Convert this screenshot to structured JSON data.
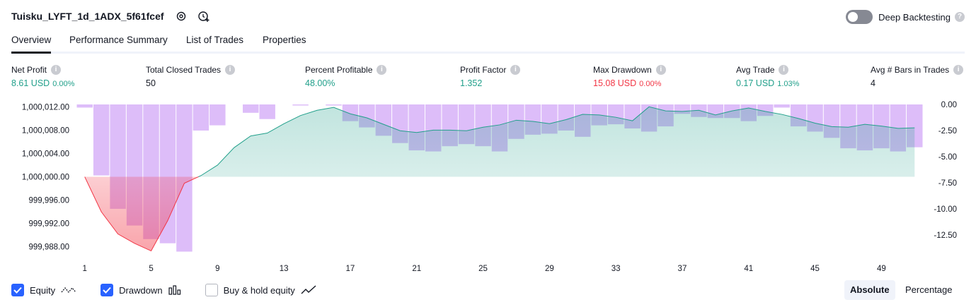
{
  "header": {
    "title": "Tuisku_LYFT_1d_1ADX_5f61fcef",
    "deep_backtesting_label": "Deep Backtesting"
  },
  "tabs": [
    "Overview",
    "Performance Summary",
    "List of Trades",
    "Properties"
  ],
  "stats": [
    {
      "label": "Net Profit",
      "value": "8.61 USD",
      "pct": "0.00%",
      "color": "green"
    },
    {
      "label": "Total Closed Trades",
      "value": "50",
      "pct": "",
      "color": "plain"
    },
    {
      "label": "Percent Profitable",
      "value": "48.00%",
      "pct": "",
      "color": "green"
    },
    {
      "label": "Profit Factor",
      "value": "1.352",
      "pct": "",
      "color": "green"
    },
    {
      "label": "Max Drawdown",
      "value": "15.08 USD",
      "pct": "0.00%",
      "color": "red"
    },
    {
      "label": "Avg Trade",
      "value": "0.17 USD",
      "pct": "1.03%",
      "color": "green"
    },
    {
      "label": "Avg # Bars in Trades",
      "value": "4",
      "pct": "",
      "color": "plain"
    }
  ],
  "legend": {
    "equity": "Equity",
    "drawdown": "Drawdown",
    "buy_hold": "Buy & hold equity"
  },
  "modes": {
    "absolute": "Absolute",
    "percentage": "Percentage"
  },
  "colors": {
    "equity_line_up": "#22a08b",
    "equity_line_down": "#f23645",
    "drawdown_bar": "#d1a7f7",
    "accent": "#2962ff"
  },
  "chart_data": {
    "type": "area",
    "x": [
      1,
      2,
      3,
      4,
      5,
      6,
      7,
      8,
      9,
      10,
      11,
      12,
      13,
      14,
      15,
      16,
      17,
      18,
      19,
      20,
      21,
      22,
      23,
      24,
      25,
      26,
      27,
      28,
      29,
      30,
      31,
      32,
      33,
      34,
      35,
      36,
      37,
      38,
      39,
      40,
      41,
      42,
      43,
      44,
      45,
      46,
      47,
      48,
      49,
      50,
      51
    ],
    "x_ticks": [
      "1",
      "5",
      "9",
      "13",
      "17",
      "21",
      "25",
      "29",
      "33",
      "37",
      "41",
      "45",
      "49"
    ],
    "left_axis": {
      "ticks": [
        "1,000,012.00",
        "1,000,008.00",
        "1,000,004.00",
        "1,000,000.00",
        "999,996.00",
        "999,992.00",
        "999,988.00"
      ],
      "ylim": [
        999987,
        1000012.4
      ]
    },
    "right_axis": {
      "ticks": [
        "0.00",
        "-2.50",
        "-5.00",
        "-7.50",
        "-10.00",
        "-12.50"
      ],
      "ylim": [
        -14.2,
        0
      ]
    },
    "series": [
      {
        "name": "Equity",
        "values": [
          1000000.0,
          999994.0,
          999990.2,
          999988.6,
          999987.3,
          999992.5,
          999998.9,
          1000000.2,
          1000002.0,
          1000005.0,
          1000007.0,
          1000007.5,
          1000009.1,
          1000010.5,
          1000011.4,
          1000011.9,
          1000010.8,
          1000010.1,
          1000009.0,
          1000007.9,
          1000007.6,
          1000008.0,
          1000008.0,
          1000007.9,
          1000008.5,
          1000008.9,
          1000009.7,
          1000009.5,
          1000009.1,
          1000009.8,
          1000010.7,
          1000010.6,
          1000010.2,
          1000009.6,
          1000012.0,
          1000011.3,
          1000011.2,
          1000011.4,
          1000010.6,
          1000011.3,
          1000011.8,
          1000011.2,
          1000010.7,
          1000010.0,
          1000009.2,
          1000008.6,
          1000008.5,
          1000009.0,
          1000008.7,
          1000008.3,
          1000008.4
        ]
      },
      {
        "name": "Drawdown",
        "values": [
          -0.3,
          -6.8,
          -10.0,
          -11.6,
          -12.9,
          -13.3,
          -14.1,
          -2.5,
          -2.0,
          0.0,
          -0.8,
          -1.4,
          0.0,
          -0.1,
          0.0,
          -0.1,
          -1.6,
          -2.2,
          -3.0,
          -3.7,
          -4.4,
          -4.5,
          -4.0,
          -3.8,
          -4.0,
          -4.5,
          -3.3,
          -2.9,
          -2.8,
          -2.5,
          -3.1,
          -2.0,
          -1.9,
          -2.3,
          -2.6,
          -2.1,
          -0.9,
          -1.2,
          -1.3,
          -1.3,
          -1.6,
          -1.1,
          -0.3,
          -2.1,
          -2.6,
          -3.2,
          -4.2,
          -4.4,
          -4.2,
          -4.5,
          -4.1
        ]
      }
    ]
  }
}
